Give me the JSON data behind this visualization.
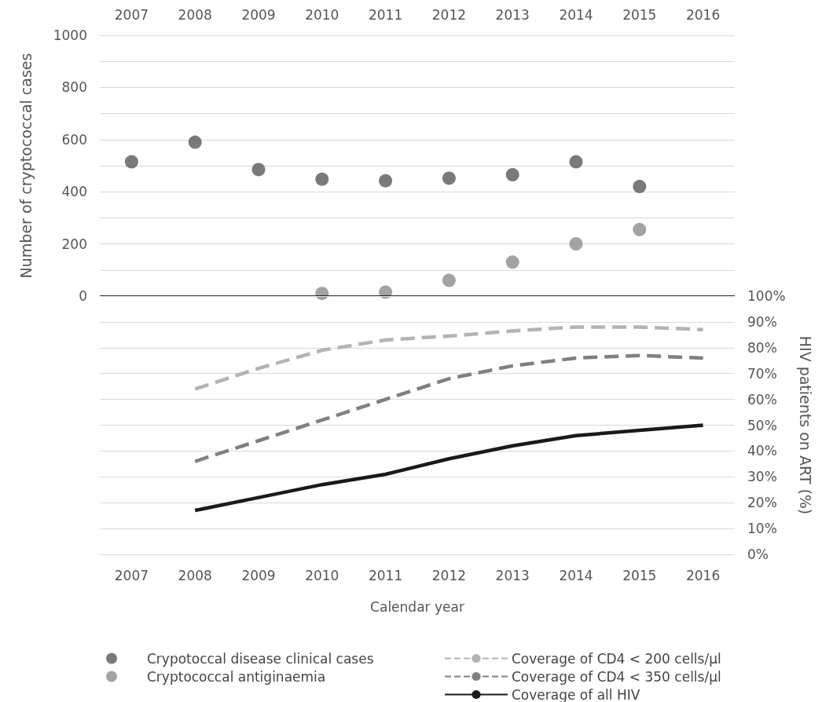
{
  "chart_data": [
    {
      "type": "scatter",
      "ylabel": "Number of cryptococcal cases",
      "categories": [
        "2007",
        "2008",
        "2009",
        "2010",
        "2011",
        "2012",
        "2013",
        "2014",
        "2015",
        "2016"
      ],
      "ylim": [
        0,
        1000
      ],
      "yticks": [
        0,
        {
          "value": 100,
          "label": null
        },
        200,
        {
          "value": 300,
          "label": null
        },
        400,
        {
          "value": 500,
          "label": null
        },
        600,
        {
          "value": 700,
          "label": null
        },
        800,
        {
          "value": 900,
          "label": null
        },
        1000
      ],
      "grid": "y",
      "legend": "bottom left",
      "marker": "circle",
      "series": [
        {
          "name": "Crypotoccal disease clinical cases",
          "color": "#595959",
          "values": [
            515,
            590,
            485,
            448,
            442,
            452,
            465,
            515,
            420,
            null
          ]
        },
        {
          "name": "Cryptococcal antiginaemia",
          "color": "#8c8c8c",
          "values": [
            null,
            null,
            null,
            10,
            15,
            60,
            130,
            200,
            255,
            null
          ]
        }
      ]
    },
    {
      "type": "line",
      "xlabel": "Calendar year",
      "y2label": "HIV patients on ART (%)",
      "categories": [
        "2007",
        "2008",
        "2009",
        "2010",
        "2011",
        "2012",
        "2013",
        "2014",
        "2015",
        "2016"
      ],
      "y2lim": [
        0,
        100
      ],
      "y2ticks": [
        {
          "value": 0,
          "label": "0%"
        },
        {
          "value": 10,
          "label": "10%"
        },
        {
          "value": 20,
          "label": "20%"
        },
        {
          "value": 30,
          "label": "30%"
        },
        {
          "value": 40,
          "label": "40%"
        },
        {
          "value": 50,
          "label": "50%"
        },
        {
          "value": 60,
          "label": "60%"
        },
        {
          "value": 70,
          "label": "70%"
        },
        {
          "value": 80,
          "label": "80%"
        },
        {
          "value": 90,
          "label": "90%"
        },
        {
          "value": 100,
          "label": "100%"
        }
      ],
      "grid": "y",
      "legend": "bottom right",
      "marker": "none",
      "series": [
        {
          "name": "Coverage of CD4 < 200 cells/µl",
          "color": "#b3b3b3",
          "axis": "y2",
          "line_style": "dashed",
          "values": [
            null,
            64,
            72,
            79,
            83,
            84.5,
            86.5,
            88,
            88,
            87
          ]
        },
        {
          "name": "Coverage of CD4 < 350 cells/µl",
          "color": "#808080",
          "axis": "y2",
          "line_style": "dashed",
          "values": [
            null,
            36,
            44,
            52,
            60,
            68,
            73,
            76,
            77,
            76
          ]
        },
        {
          "name": "Coverage of all HIV",
          "color": "#1a1a1a",
          "axis": "y2",
          "line_style": "solid",
          "values": [
            null,
            17,
            22,
            27,
            31,
            37,
            42,
            46,
            48,
            50
          ]
        }
      ]
    }
  ]
}
